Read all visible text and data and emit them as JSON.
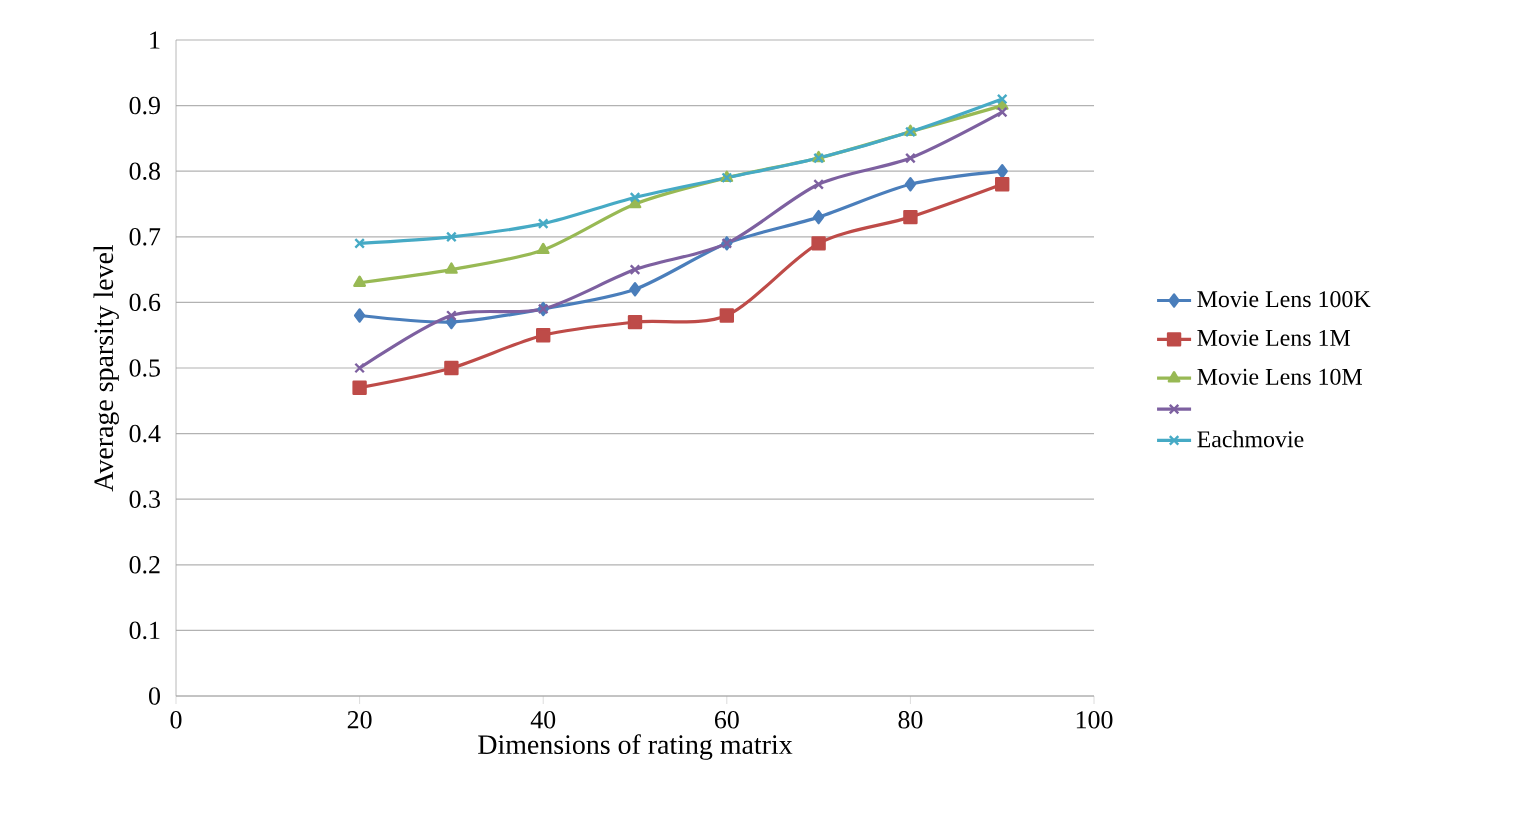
{
  "chart_data": {
    "type": "line",
    "xlabel": "Dimensions of rating matrix",
    "ylabel": "Average sparsity level",
    "x": [
      20,
      30,
      40,
      50,
      60,
      70,
      80,
      90
    ],
    "series": [
      {
        "name": "Movie Lens 100K",
        "color": "#4a7ebb",
        "marker": "diamond",
        "values": [
          0.58,
          0.57,
          0.59,
          0.62,
          0.69,
          0.73,
          0.78,
          0.8
        ]
      },
      {
        "name": "Movie Lens 1M",
        "color": "#be4b48",
        "marker": "square",
        "values": [
          0.47,
          0.5,
          0.55,
          0.57,
          0.58,
          0.69,
          0.73,
          0.78
        ]
      },
      {
        "name": "Movie Lens 10M",
        "color": "#98b954",
        "marker": "triangle",
        "values": [
          0.63,
          0.65,
          0.68,
          0.75,
          0.79,
          0.82,
          0.86,
          0.9
        ]
      },
      {
        "color": "#7d60a0",
        "marker": "cross",
        "values": [
          0.5,
          0.58,
          0.59,
          0.65,
          0.69,
          0.78,
          0.82,
          0.89
        ]
      },
      {
        "name": "Eachmovie",
        "color": "#46aac5",
        "marker": "cross",
        "values": [
          0.69,
          0.7,
          0.72,
          0.76,
          0.79,
          0.82,
          0.86,
          0.91
        ]
      }
    ],
    "xlim": [
      0,
      100
    ],
    "xticks": [
      0,
      20,
      40,
      60,
      80,
      100
    ],
    "ylim": [
      0,
      1
    ],
    "yticks": [
      0,
      0.1,
      0.2,
      0.3,
      0.4,
      0.5,
      0.6,
      0.7,
      0.8,
      0.9,
      1
    ],
    "grid": "y",
    "legend": "right",
    "line_style": "solid"
  }
}
